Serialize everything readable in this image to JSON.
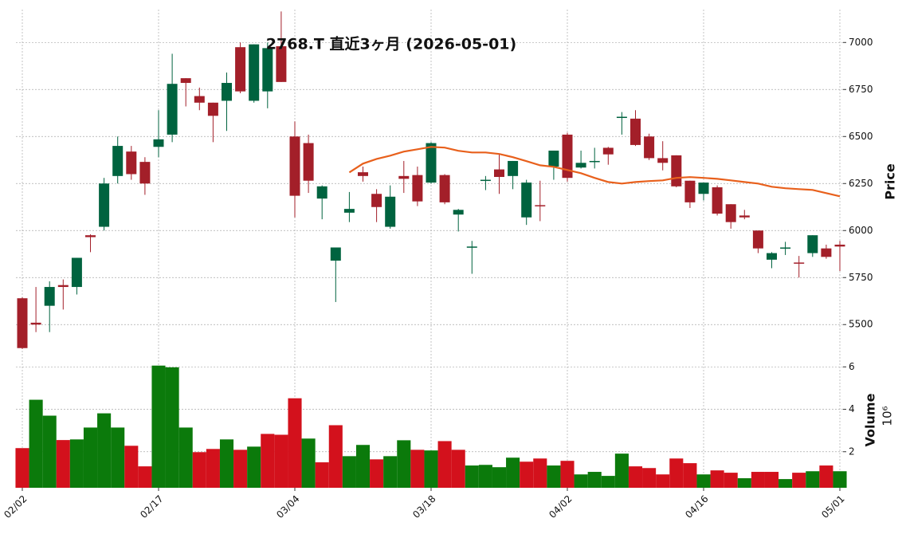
{
  "chart_data": {
    "type": "candlestick",
    "title": "2768.T 直近3ヶ月 (2026-05-01)",
    "categories": [
      "02/02",
      null,
      null,
      null,
      null,
      null,
      null,
      null,
      null,
      null,
      "02/17",
      null,
      null,
      null,
      null,
      null,
      null,
      null,
      null,
      null,
      "03/04",
      null,
      null,
      null,
      null,
      null,
      null,
      null,
      null,
      null,
      "03/18",
      null,
      null,
      null,
      null,
      null,
      null,
      null,
      null,
      null,
      "04/02",
      null,
      null,
      null,
      null,
      null,
      null,
      null,
      null,
      null,
      "04/16",
      null,
      null,
      null,
      null,
      null,
      null,
      null,
      null,
      null,
      "05/01"
    ],
    "open": [
      5640,
      5510,
      5600,
      5710,
      5700,
      5975,
      6020,
      6290,
      6420,
      6365,
      6445,
      6510,
      6810,
      6715,
      6680,
      6690,
      6975,
      6690,
      6740,
      6980,
      6500,
      6465,
      6170,
      5840,
      6095,
      6310,
      6195,
      6020,
      6290,
      6295,
      6255,
      6295,
      6085,
      5910,
      6265,
      6325,
      6290,
      6070,
      6135,
      6340,
      6510,
      6335,
      6365,
      6440,
      6600,
      6595,
      6500,
      6385,
      6400,
      6265,
      6195,
      6230,
      6140,
      6080,
      6000,
      5845,
      5905,
      5830,
      5880,
      5905,
      5925
    ],
    "high": [
      5645,
      5700,
      5730,
      5740,
      5855,
      5980,
      6280,
      6500,
      6450,
      6390,
      6640,
      6940,
      6810,
      6760,
      6680,
      6840,
      7000,
      6990,
      7000,
      7165,
      6580,
      6510,
      6240,
      5910,
      6205,
      6340,
      6220,
      6240,
      6370,
      6340,
      6470,
      6300,
      6115,
      5945,
      6290,
      6410,
      6370,
      6270,
      6265,
      6425,
      6520,
      6425,
      6440,
      6445,
      6630,
      6640,
      6515,
      6475,
      6400,
      6265,
      6255,
      6240,
      6140,
      6110,
      6000,
      5885,
      5940,
      5865,
      5975,
      5925,
      5945
    ],
    "low": [
      5370,
      5460,
      5460,
      5580,
      5660,
      5885,
      6000,
      6250,
      6270,
      6190,
      6390,
      6470,
      6660,
      6640,
      6470,
      6530,
      6730,
      6680,
      6650,
      6790,
      6070,
      6200,
      6060,
      5620,
      6045,
      6260,
      6045,
      6010,
      6200,
      6130,
      6250,
      6140,
      5995,
      5770,
      6215,
      6195,
      6220,
      6030,
      6050,
      6270,
      6260,
      6330,
      6330,
      6350,
      6510,
      6450,
      6375,
      6320,
      6230,
      6120,
      6160,
      6080,
      6010,
      6060,
      5880,
      5800,
      5870,
      5750,
      5860,
      5850,
      5785
    ],
    "close": [
      5375,
      5500,
      5700,
      5700,
      5855,
      5965,
      6250,
      6450,
      6300,
      6250,
      6485,
      6780,
      6785,
      6680,
      6610,
      6785,
      6740,
      6990,
      6970,
      6790,
      6185,
      6265,
      6235,
      5910,
      6115,
      6290,
      6125,
      6180,
      6275,
      6155,
      6465,
      6150,
      6110,
      5915,
      6270,
      6285,
      6370,
      6255,
      6130,
      6425,
      6280,
      6360,
      6370,
      6405,
      6605,
      6455,
      6385,
      6360,
      6235,
      6150,
      6255,
      6090,
      6045,
      6070,
      5905,
      5880,
      5910,
      5825,
      5975,
      5860,
      5915
    ],
    "up_color": "#00633f",
    "down_color": "#a31f29",
    "ylim": [
      5340,
      7175
    ],
    "yticks": [
      5500,
      5750,
      6000,
      6250,
      6500,
      6750,
      7000
    ],
    "y_label": "Price",
    "grid": true,
    "moving_average": {
      "color": "#e8601c",
      "values": [
        null,
        null,
        null,
        null,
        null,
        null,
        null,
        null,
        null,
        null,
        null,
        null,
        null,
        null,
        null,
        null,
        null,
        null,
        null,
        null,
        null,
        null,
        null,
        null,
        6309,
        6356,
        6381,
        6398,
        6420,
        6432,
        6445,
        6441,
        6424,
        6415,
        6415,
        6407,
        6390,
        6369,
        6347,
        6339,
        6322,
        6305,
        6280,
        6258,
        6250,
        6258,
        6263,
        6267,
        6280,
        6284,
        6280,
        6275,
        6267,
        6258,
        6250,
        6233,
        6225,
        6220,
        6216,
        6199,
        6182
      ]
    },
    "volume": {
      "label": "Volume",
      "offset_label": "10⁶",
      "values": [
        2.17,
        4.45,
        3.7,
        2.55,
        2.58,
        3.14,
        3.81,
        3.14,
        2.28,
        1.31,
        6.06,
        5.98,
        3.14,
        1.98,
        2.13,
        2.58,
        2.09,
        2.24,
        2.84,
        2.8,
        4.52,
        2.62,
        1.5,
        3.25,
        1.79,
        2.32,
        1.64,
        1.79,
        2.54,
        2.09,
        2.06,
        2.5,
        2.09,
        1.35,
        1.38,
        1.27,
        1.72,
        1.53,
        1.68,
        1.35,
        1.57,
        0.93,
        1.05,
        0.86,
        1.91,
        1.31,
        1.23,
        0.93,
        1.68,
        1.46,
        0.93,
        1.12,
        1.01,
        0.75,
        1.05,
        1.05,
        0.71,
        1.01,
        1.08,
        1.35,
        1.08
      ],
      "colors": [
        "#d3111c",
        "#0b7a0b",
        "#0b7a0b",
        "#d3111c",
        "#0b7a0b",
        "#0b7a0b",
        "#0b7a0b",
        "#0b7a0b",
        "#d3111c",
        "#d3111c",
        "#0b7a0b",
        "#0b7a0b",
        "#0b7a0b",
        "#d3111c",
        "#d3111c",
        "#0b7a0b",
        "#d3111c",
        "#0b7a0b",
        "#d3111c",
        "#d3111c",
        "#d3111c",
        "#0b7a0b",
        "#d3111c",
        "#d3111c",
        "#0b7a0b",
        "#0b7a0b",
        "#d3111c",
        "#0b7a0b",
        "#0b7a0b",
        "#d3111c",
        "#0b7a0b",
        "#d3111c",
        "#d3111c",
        "#0b7a0b",
        "#0b7a0b",
        "#0b7a0b",
        "#0b7a0b",
        "#d3111c",
        "#d3111c",
        "#0b7a0b",
        "#d3111c",
        "#0b7a0b",
        "#0b7a0b",
        "#0b7a0b",
        "#0b7a0b",
        "#d3111c",
        "#d3111c",
        "#d3111c",
        "#d3111c",
        "#d3111c",
        "#0b7a0b",
        "#d3111c",
        "#d3111c",
        "#0b7a0b",
        "#d3111c",
        "#d3111c",
        "#0b7a0b",
        "#d3111c",
        "#0b7a0b",
        "#d3111c",
        "#0b7a0b"
      ],
      "ylim": [
        0.3,
        6.5
      ],
      "yticks": [
        2,
        4,
        6
      ]
    }
  }
}
